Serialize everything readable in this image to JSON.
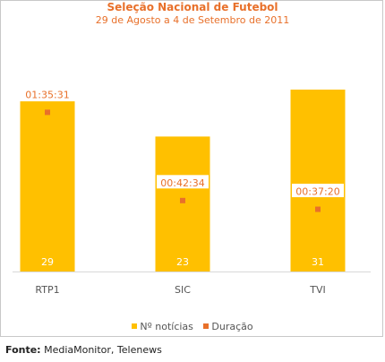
{
  "chart_data": {
    "type": "bar",
    "title": "Seleção Nacional de Futebol",
    "subtitle": "29 de Agosto a 4 de Setembro de 2011",
    "categories": [
      "RTP1",
      "SIC",
      "TVI"
    ],
    "series": [
      {
        "name": "Nº notícias",
        "type": "bar",
        "values": [
          29,
          23,
          31
        ],
        "color": "#ffc000"
      },
      {
        "name": "Duração",
        "type": "scatter",
        "values": [
          "01:35:31",
          "00:42:34",
          "00:37:20"
        ],
        "seconds": [
          5731,
          2554,
          2240
        ],
        "color": "#e8702a"
      }
    ],
    "ylim_bars": [
      0,
      31
    ],
    "ylim_duration_seconds": [
      0,
      7000
    ],
    "legend_position": "bottom-center",
    "grid": false
  },
  "source": {
    "label": "Fonte:",
    "text": " MediaMonitor, Telenews"
  }
}
